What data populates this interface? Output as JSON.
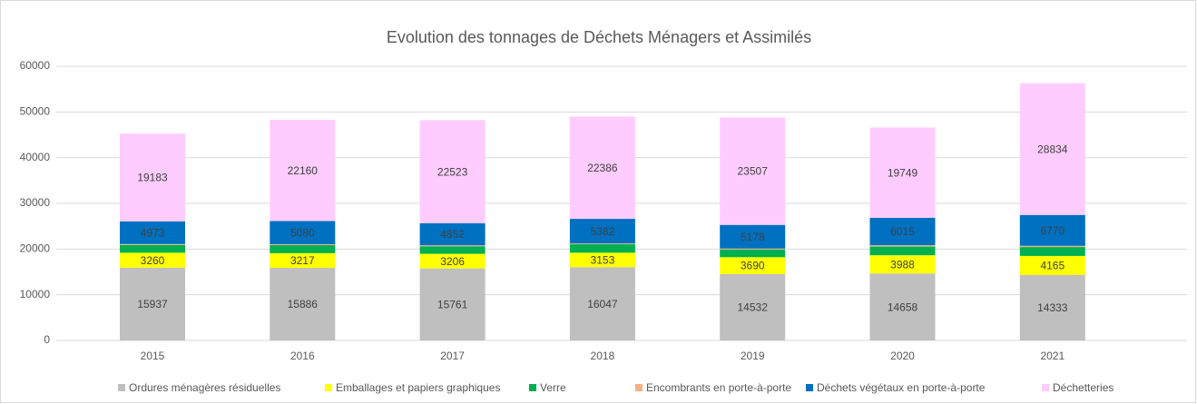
{
  "chart_data": {
    "type": "stacked_bar",
    "title": "Evolution des tonnages de Déchets Ménagers et Assimilés",
    "categories": [
      "2015",
      "2016",
      "2017",
      "2018",
      "2019",
      "2020",
      "2021"
    ],
    "series": [
      {
        "name": "Ordures ménagères résiduelles",
        "color": "#bfbfbf",
        "values": [
          15937,
          15886,
          15761,
          16047,
          14532,
          14658,
          14333
        ]
      },
      {
        "name": "Emballages et papiers graphiques",
        "color": "#ffff00",
        "values": [
          3260,
          3217,
          3206,
          3153,
          3690,
          3988,
          4165
        ]
      },
      {
        "name": "Verre",
        "color": "#00b050",
        "values": [
          1700,
          1750,
          1650,
          1850,
          1700,
          1900,
          1950
        ]
      },
      {
        "name": "Encombrants en porte-à-porte",
        "color": "#f4b183",
        "values": [
          200,
          200,
          200,
          180,
          190,
          290,
          250
        ]
      },
      {
        "name": "Déchets végétaux en porte-à-porte",
        "color": "#0070c0",
        "values": [
          4973,
          5080,
          4852,
          5382,
          5178,
          6015,
          6770
        ]
      },
      {
        "name": "Déchetteries",
        "color": "#ffccff",
        "values": [
          19183,
          22160,
          22523,
          22386,
          23507,
          19749,
          28834
        ]
      }
    ],
    "ylim": [
      0,
      60000
    ],
    "yticks": [
      0,
      10000,
      20000,
      30000,
      40000,
      50000,
      60000
    ],
    "grid": true
  }
}
